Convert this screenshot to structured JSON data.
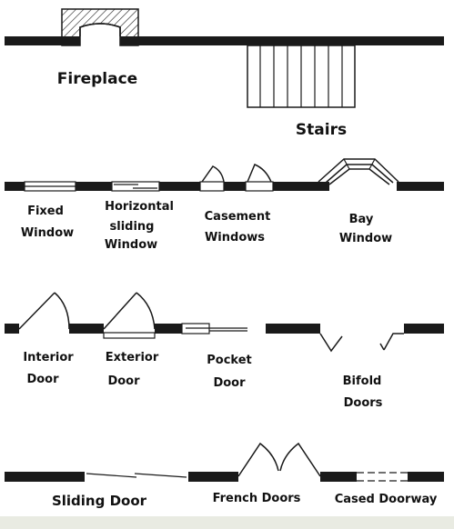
{
  "symbols": {
    "fireplace": "Fireplace",
    "stairs": "Stairs",
    "fixed_window": [
      "Fixed",
      "Window"
    ],
    "horizontal_sliding_window": [
      "Horizontal",
      "sliding",
      "Window"
    ],
    "casement_windows": [
      "Casement",
      "Windows"
    ],
    "bay_window": [
      "Bay",
      "Window"
    ],
    "interior_door": [
      "Interior",
      "Door"
    ],
    "exterior_door": [
      "Exterior",
      "Door"
    ],
    "pocket_door": [
      "Pocket",
      "Door"
    ],
    "bifold_doors": [
      "Bifold",
      "Doors"
    ],
    "sliding_door": "Sliding Door",
    "french_doors": "French Doors",
    "cased_doorway": "Cased Doorway"
  },
  "colors": {
    "ink": "#1a1a1a",
    "paper": "#ffffff",
    "footer": "#e9ebe2"
  }
}
